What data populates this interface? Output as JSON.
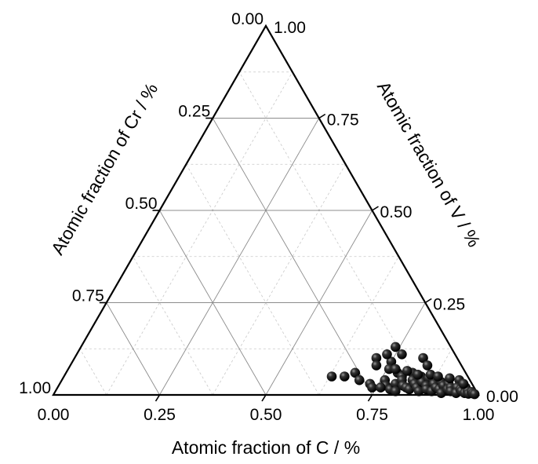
{
  "chart_data": {
    "type": "scatter",
    "subtype": "ternary",
    "title": "",
    "axes": {
      "bottom": {
        "label": "Atomic fraction of C / %",
        "ticks": [
          "0.00",
          "0.25",
          "0.50",
          "0.75",
          "1.00"
        ]
      },
      "left": {
        "label": "Atomic fraction of Cr / %",
        "ticks": [
          "0.00",
          "0.25",
          "0.50",
          "0.75",
          "1.00"
        ]
      },
      "right": {
        "label": "Atomic fraction of V / %",
        "ticks": [
          "1.00",
          "0.75",
          "0.50",
          "0.25",
          "0.00"
        ]
      }
    },
    "range": [
      0,
      1
    ],
    "grid": {
      "major_step": 0.25,
      "minor_step": 0.125,
      "minor_dashed": true
    },
    "marker": {
      "shape": "sphere",
      "color": "#000000"
    },
    "series": [
      {
        "points": [
          {
            "C": 0.63,
            "V": 0.05
          },
          {
            "C": 0.66,
            "V": 0.05
          },
          {
            "C": 0.68,
            "V": 0.06
          },
          {
            "C": 0.71,
            "V": 0.1
          },
          {
            "C": 0.72,
            "V": 0.08
          },
          {
            "C": 0.73,
            "V": 0.03
          },
          {
            "C": 0.74,
            "V": 0.02
          },
          {
            "C": 0.75,
            "V": 0.09
          },
          {
            "C": 0.755,
            "V": 0.07
          },
          {
            "C": 0.76,
            "V": 0.04
          },
          {
            "C": 0.765,
            "V": 0.11
          },
          {
            "C": 0.77,
            "V": 0.025
          },
          {
            "C": 0.78,
            "V": 0.06
          },
          {
            "C": 0.785,
            "V": 0.015
          },
          {
            "C": 0.79,
            "V": 0.03
          },
          {
            "C": 0.795,
            "V": 0.05
          },
          {
            "C": 0.8,
            "V": 0.01
          },
          {
            "C": 0.8,
            "V": 0.04
          },
          {
            "C": 0.81,
            "V": 0.025
          },
          {
            "C": 0.815,
            "V": 0.06
          },
          {
            "C": 0.82,
            "V": 0.02
          },
          {
            "C": 0.825,
            "V": 0.04
          },
          {
            "C": 0.83,
            "V": 0.015
          },
          {
            "C": 0.835,
            "V": 0.03
          },
          {
            "C": 0.84,
            "V": 0.05
          },
          {
            "C": 0.845,
            "V": 0.02
          },
          {
            "C": 0.85,
            "V": 0.035
          },
          {
            "C": 0.855,
            "V": 0.01
          },
          {
            "C": 0.86,
            "V": 0.045
          },
          {
            "C": 0.865,
            "V": 0.025
          },
          {
            "C": 0.87,
            "V": 0.015
          },
          {
            "C": 0.875,
            "V": 0.04
          },
          {
            "C": 0.88,
            "V": 0.03
          },
          {
            "C": 0.885,
            "V": 0.01
          },
          {
            "C": 0.89,
            "V": 0.02
          },
          {
            "C": 0.895,
            "V": 0.035
          },
          {
            "C": 0.9,
            "V": 0.015
          },
          {
            "C": 0.905,
            "V": 0.025
          },
          {
            "C": 0.91,
            "V": 0.005
          },
          {
            "C": 0.915,
            "V": 0.03
          },
          {
            "C": 0.92,
            "V": 0.015
          },
          {
            "C": 0.925,
            "V": 0.02
          },
          {
            "C": 0.93,
            "V": 0.01
          },
          {
            "C": 0.935,
            "V": 0.04
          },
          {
            "C": 0.94,
            "V": 0.02
          },
          {
            "C": 0.945,
            "V": 0.005
          },
          {
            "C": 0.95,
            "V": 0.015
          },
          {
            "C": 0.955,
            "V": 0.01
          },
          {
            "C": 0.96,
            "V": 0.02
          },
          {
            "C": 0.965,
            "V": 0.005
          },
          {
            "C": 0.97,
            "V": 0.01
          },
          {
            "C": 0.975,
            "V": 0.003
          },
          {
            "C": 0.98,
            "V": 0.008
          },
          {
            "C": 0.985,
            "V": 0.004
          },
          {
            "C": 0.99,
            "V": 0.002
          },
          {
            "C": 0.77,
            "V": 0.07
          },
          {
            "C": 0.8,
            "V": 0.065
          },
          {
            "C": 0.83,
            "V": 0.055
          },
          {
            "C": 0.86,
            "V": 0.055
          },
          {
            "C": 0.74,
            "V": 0.13
          },
          {
            "C": 0.82,
            "V": 0.1
          },
          {
            "C": 0.73,
            "V": 0.11
          },
          {
            "C": 0.84,
            "V": 0.08
          },
          {
            "C": 0.88,
            "V": 0.05
          },
          {
            "C": 0.91,
            "V": 0.045
          },
          {
            "C": 0.95,
            "V": 0.03
          },
          {
            "C": 0.7,
            "V": 0.04
          },
          {
            "C": 0.76,
            "V": 0.02
          }
        ]
      }
    ]
  }
}
